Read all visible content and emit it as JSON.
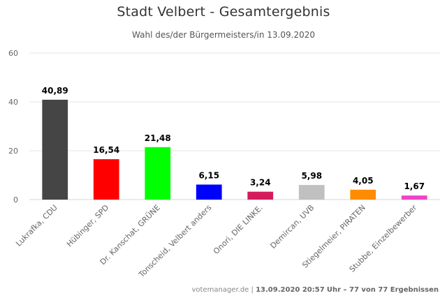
{
  "chart_data": {
    "type": "bar",
    "title": "Stadt Velbert - Gesamtergebnis",
    "subtitle": "Wahl des/der Bürgermeisters/in 13.09.2020",
    "xlabel": "",
    "ylabel": "",
    "ylim": [
      0,
      60
    ],
    "yticks": [
      0,
      20,
      40,
      60
    ],
    "grid": true,
    "categories": [
      "Lukrafka, CDU",
      "Hübinger, SPD",
      "Dr. Kanschat, GRÜNE",
      "Tonscheid, Velbert anders",
      "Onori, DIE LINKE.",
      "Demircan, UVB",
      "Stiegelmeier, PIRATEN",
      "Stubbe, Einzelbewerber"
    ],
    "values": [
      40.89,
      16.54,
      21.48,
      6.15,
      3.24,
      5.98,
      4.05,
      1.67
    ],
    "value_labels": [
      "40,89",
      "16,54",
      "21,48",
      "6,15",
      "3,24",
      "5,98",
      "4,05",
      "1,67"
    ],
    "colors": [
      "#454545",
      "#ff0000",
      "#00ff00",
      "#0000ff",
      "#d41c5c",
      "#c0c0c0",
      "#ff8c00",
      "#f042c8"
    ]
  },
  "footer": {
    "source": "votemanager.de",
    "separator": "|",
    "datetime": "13.09.2020 20:57",
    "status": "Uhr – 77 von 77 Ergebnissen"
  }
}
